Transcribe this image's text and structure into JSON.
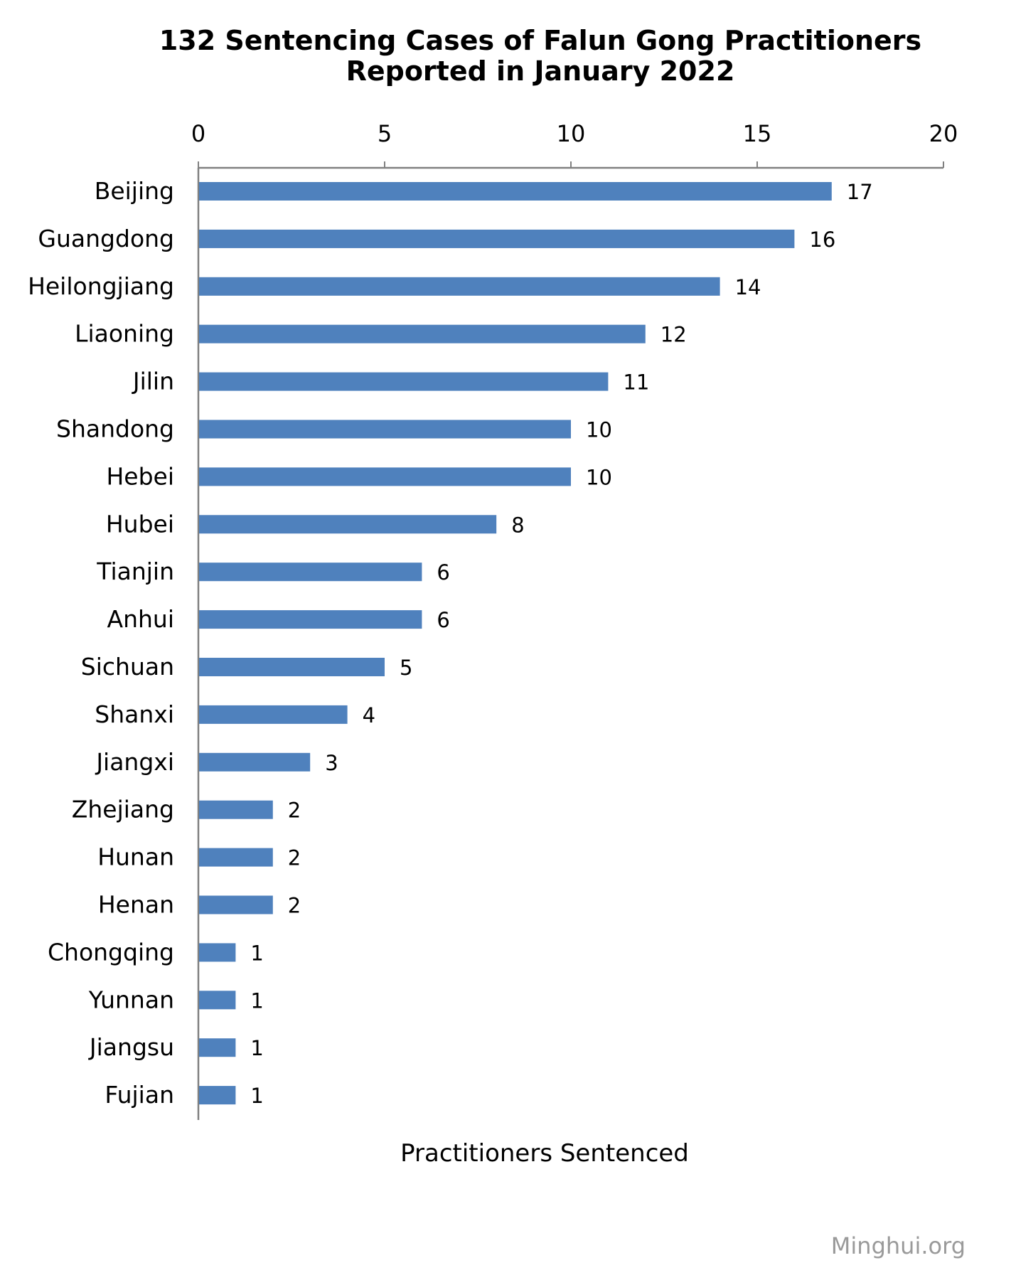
{
  "chart_data": {
    "type": "bar",
    "orientation": "horizontal",
    "title": "132 Sentencing Cases of Falun Gong Practitioners",
    "subtitle": "Reported in January 2022",
    "xlabel": "Practitioners Sentenced",
    "x_axis_position": "top",
    "xlim": [
      0,
      20
    ],
    "xticks": [
      0,
      5,
      10,
      15,
      20
    ],
    "grid": false,
    "legend": "none",
    "bar_color": "#4F81BD",
    "categories": [
      "Beijing",
      "Guangdong",
      "Heilongjiang",
      "Liaoning",
      "Jilin",
      "Shandong",
      "Hebei",
      "Hubei",
      "Tianjin",
      "Anhui",
      "Sichuan",
      "Shanxi",
      "Jiangxi",
      "Zhejiang",
      "Hunan",
      "Henan",
      "Chongqing",
      "Yunnan",
      "Jiangsu",
      "Fujian"
    ],
    "values": [
      17,
      16,
      14,
      12,
      11,
      10,
      10,
      8,
      6,
      6,
      5,
      4,
      3,
      2,
      2,
      2,
      1,
      1,
      1,
      1
    ],
    "data_labels": true
  },
  "watermark": "Minghui.org",
  "colors": {
    "axis": "#808080",
    "watermark": "#9a9a9a",
    "text": "#000000"
  }
}
